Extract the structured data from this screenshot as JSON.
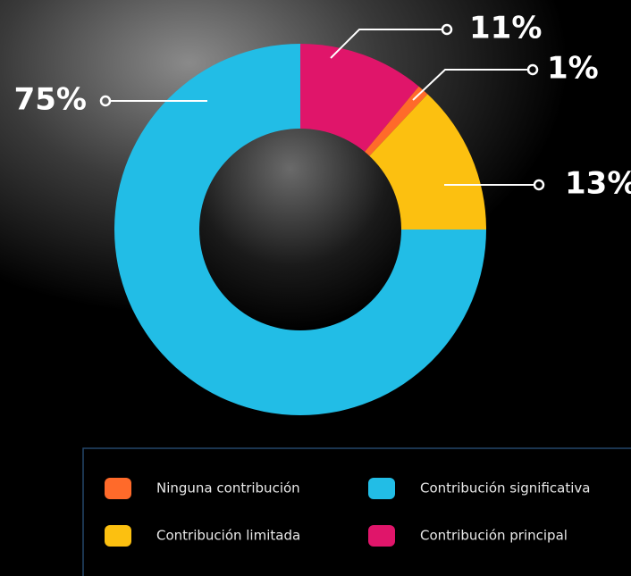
{
  "chart_data": {
    "type": "pie",
    "categories": [
      "Contribución principal",
      "Ninguna contribución",
      "Contribución limitada",
      "Contribución significativa"
    ],
    "values": [
      11,
      1,
      13,
      75
    ],
    "value_labels": [
      "11%",
      "1%",
      "13%",
      "75%"
    ],
    "colors": [
      "#e0156a",
      "#ff6a2a",
      "#fcc010",
      "#22bde6"
    ]
  }
}
